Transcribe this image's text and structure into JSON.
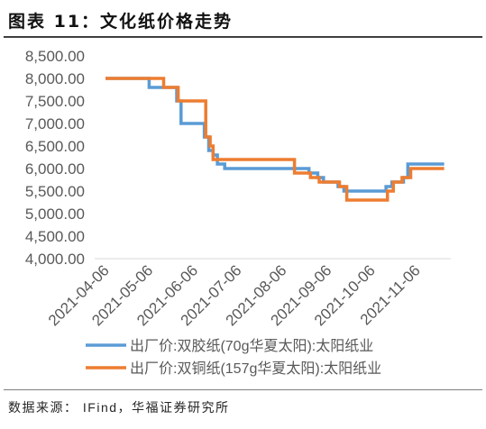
{
  "chart_data": {
    "type": "line",
    "title": "图表 11：文化纸价格走势",
    "xlim": [
      "2021-04-06",
      "2021-11-25"
    ],
    "ylim": [
      4000,
      8500
    ],
    "xticks": [
      "2021-04-06",
      "2021-05-06",
      "2021-06-06",
      "2021-07-06",
      "2021-08-06",
      "2021-09-06",
      "2021-10-06",
      "2021-11-06"
    ],
    "yticks": [
      8500,
      8000,
      7500,
      7000,
      6500,
      6000,
      5500,
      5000,
      4500,
      4000
    ],
    "ytick_labels": [
      "8,500.00",
      "8,000.00",
      "7,500.00",
      "7,000.00",
      "6,500.00",
      "6,000.00",
      "5,500.00",
      "5,000.00",
      "4,500.00",
      "4,000.00"
    ],
    "grid": false,
    "legend_position": "bottom",
    "series": [
      {
        "name": "出厂价:双胶纸(70g华夏太阳):太阳纸业",
        "color": "#5B9BD5",
        "x": [
          "2021-04-06",
          "2021-05-06",
          "2021-05-25",
          "2021-05-28",
          "2021-06-13",
          "2021-06-16",
          "2021-06-19",
          "2021-06-22",
          "2021-06-27",
          "2021-08-24",
          "2021-08-30",
          "2021-09-03",
          "2021-09-13",
          "2021-09-17",
          "2021-10-16",
          "2021-10-20",
          "2021-10-28",
          "2021-10-31",
          "2021-11-25"
        ],
        "y": [
          8000,
          7800,
          7500,
          7000,
          6700,
          6400,
          6300,
          6100,
          6000,
          5900,
          5800,
          5700,
          5600,
          5500,
          5600,
          5700,
          5800,
          6100,
          6100
        ]
      },
      {
        "name": "出厂价:双铜纸(157g华夏太阳):太阳纸业",
        "color": "#ED7D31",
        "x": [
          "2021-04-06",
          "2021-05-16",
          "2021-05-26",
          "2021-06-14",
          "2021-06-17",
          "2021-06-19",
          "2021-08-14",
          "2021-08-25",
          "2021-08-31",
          "2021-09-14",
          "2021-09-19",
          "2021-10-17",
          "2021-10-21",
          "2021-10-27",
          "2021-11-02",
          "2021-11-25"
        ],
        "y": [
          8000,
          7800,
          7500,
          6700,
          6500,
          6200,
          5900,
          5800,
          5700,
          5600,
          5300,
          5500,
          5700,
          5800,
          6000,
          6000
        ]
      }
    ]
  },
  "source": "数据来源： IFind，华福证券研究所"
}
